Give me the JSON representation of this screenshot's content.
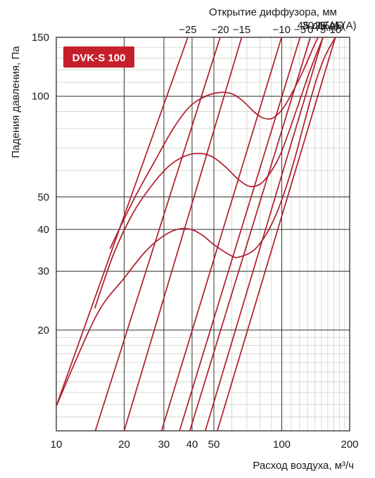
{
  "chart_data": {
    "type": "line",
    "title": "DVK-S 100",
    "xlabel": "Расход воздуха, м³/ч",
    "ylabel": "Падения давления, Па",
    "x2label": "Открытие диффузора, мм",
    "xscale": "log",
    "yscale": "log",
    "xlim": [
      10,
      200
    ],
    "ylim": [
      10,
      150
    ],
    "x_ticks": [
      10,
      20,
      30,
      40,
      50,
      100,
      200
    ],
    "y_ticks": [
      20,
      30,
      40,
      50,
      100,
      150
    ],
    "grid": true,
    "series_color": "#b01c2a",
    "badge_color": "#c61f2c",
    "opening_lines": [
      {
        "label": "−25",
        "points": [
          [
            10,
            11.85
          ],
          [
            38.3,
            150
          ]
        ]
      },
      {
        "label": "−20",
        "points": [
          [
            14.9,
            10
          ],
          [
            53.3,
            150
          ]
        ]
      },
      {
        "label": "−15",
        "points": [
          [
            20,
            10
          ],
          [
            66.4,
            150
          ]
        ]
      },
      {
        "label": "−10",
        "points": [
          [
            29.3,
            10
          ],
          [
            99.8,
            150
          ]
        ]
      },
      {
        "label": "−5",
        "points": [
          [
            35.2,
            10
          ],
          [
            120.5,
            150
          ]
        ]
      },
      {
        "label": "0",
        "points": [
          [
            39.1,
            10
          ],
          [
            133.9,
            150
          ]
        ]
      },
      {
        "label": "5",
        "points": [
          [
            45.8,
            10
          ],
          [
            152.3,
            150
          ]
        ]
      },
      {
        "label": "10",
        "points": [
          [
            51.8,
            10
          ],
          [
            172.9,
            150
          ]
        ]
      }
    ],
    "noise_curves": [
      {
        "label": "25 дБ(А)",
        "points": [
          [
            10,
            11.85
          ],
          [
            15,
            22
          ],
          [
            20,
            28.6
          ],
          [
            25,
            34.5
          ],
          [
            30,
            38.3
          ],
          [
            35,
            40.1
          ],
          [
            40,
            39.9
          ],
          [
            45,
            38.2
          ],
          [
            50,
            36
          ],
          [
            60,
            33.3
          ],
          [
            65,
            33.1
          ],
          [
            75,
            34.6
          ],
          [
            85,
            38.5
          ],
          [
            95,
            44.8
          ],
          [
            105,
            54
          ],
          [
            115,
            66.3
          ],
          [
            125,
            82
          ],
          [
            140,
            108
          ],
          [
            155,
            131
          ],
          [
            172.9,
            150
          ]
        ]
      },
      {
        "label": "30 дБ(А)",
        "points": [
          [
            14.8,
            23.2
          ],
          [
            18,
            33.9
          ],
          [
            22,
            45
          ],
          [
            27,
            55
          ],
          [
            32,
            62.3
          ],
          [
            38,
            66.6
          ],
          [
            44,
            67.4
          ],
          [
            50,
            65.5
          ],
          [
            57,
            61
          ],
          [
            64,
            56.5
          ],
          [
            72,
            53.8
          ],
          [
            80,
            54.6
          ],
          [
            88,
            58.5
          ],
          [
            98,
            66.4
          ],
          [
            108,
            79
          ],
          [
            120,
            97
          ],
          [
            133.9,
            120
          ],
          [
            152.3,
            150
          ]
        ]
      },
      {
        "label": "45 дБ(А)",
        "points": [
          [
            17.3,
            35
          ],
          [
            22,
            49
          ],
          [
            27,
            63
          ],
          [
            33,
            80
          ],
          [
            39,
            93
          ],
          [
            46,
            100
          ],
          [
            53,
            102.6
          ],
          [
            60,
            101.7
          ],
          [
            67,
            97
          ],
          [
            75,
            90
          ],
          [
            82,
            86.3
          ],
          [
            90,
            85.7
          ],
          [
            98,
            89.5
          ],
          [
            105,
            95.5
          ],
          [
            115,
            107
          ],
          [
            125,
            120
          ],
          [
            138,
            140
          ],
          [
            145,
            150
          ]
        ]
      }
    ]
  }
}
